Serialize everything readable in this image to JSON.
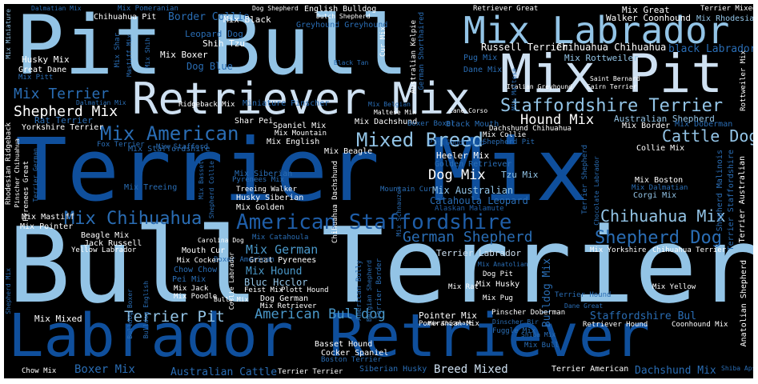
{
  "palette": {
    "background": "#000000",
    "pale": "#cfe1f2",
    "light": "#93c4e6",
    "mid": "#4a98c9",
    "medium": "#2a6db4",
    "deep": "#0f4f9c",
    "white": "#ffffff"
  },
  "words": [
    {
      "t": "Terrier Mix",
      "c": "#0f4f9c"
    },
    {
      "t": "Bull Terrier",
      "c": "#93c4e6"
    },
    {
      "t": "Pit Bull",
      "c": "#93c4e6"
    },
    {
      "t": "Labrador Retriever",
      "c": "#0f4f9c"
    },
    {
      "t": "Mix Labrador",
      "c": "#93c4e6"
    },
    {
      "t": "Mix Pit",
      "c": "#cfe1f2"
    },
    {
      "t": "Retriever Mix",
      "c": "#cfe1f2"
    },
    {
      "t": "Staffordshire Terrier",
      "c": "#93c4e6"
    },
    {
      "t": "American Staffordshire",
      "c": "#1f5ea8"
    },
    {
      "t": "Mixed Breed",
      "c": "#93c4e6"
    },
    {
      "t": "Mix American",
      "c": "#2a6db4"
    },
    {
      "t": "Shepherd Dog",
      "c": "#2a6db4"
    },
    {
      "t": "German Shepherd",
      "c": "#2a6db4"
    },
    {
      "t": "Chihuahua Mix",
      "c": "#93c4e6"
    },
    {
      "t": "Mix Chihuahua",
      "c": "#2a6db4"
    },
    {
      "t": "Cattle Dog",
      "c": "#93c4e6"
    },
    {
      "t": "Shepherd Mix",
      "c": "#ffffff"
    },
    {
      "t": "Mix Terrier",
      "c": "#2a6db4"
    },
    {
      "t": "Hound Mix",
      "c": "#ffffff"
    },
    {
      "t": "Dog Mix",
      "c": "#ffffff"
    },
    {
      "t": "American Bulldog",
      "c": "#4a98c9"
    },
    {
      "t": "Terrier Pit",
      "c": "#93c4e6"
    },
    {
      "t": "Breed Mixed",
      "c": "#cfe1f2"
    },
    {
      "t": "Australian Cattle",
      "c": "#2a6db4"
    },
    {
      "t": "Boxer Mix",
      "c": "#2a6db4"
    },
    {
      "t": "Dachshund Mix",
      "c": "#2a6db4"
    },
    {
      "t": "Mix German",
      "c": "#4a98c9"
    },
    {
      "t": "Bulldog Mix",
      "c": "#2a6db4"
    },
    {
      "t": "Staffordshire Bul",
      "c": "#2a6db4"
    },
    {
      "t": "Terrier Labrador",
      "c": "#cfe1f2"
    },
    {
      "t": "Mix Hound",
      "c": "#4a98c9"
    },
    {
      "t": "Border Collie",
      "c": "#2a6db4"
    },
    {
      "t": "Russell Terrier",
      "c": "#ffffff"
    },
    {
      "t": "Chihuahua Chihuahua",
      "c": "#ffffff"
    },
    {
      "t": "Mix Rottweiler",
      "c": "#93c4e6"
    },
    {
      "t": "black Labrador",
      "c": "#2a6db4"
    },
    {
      "t": "Mix Great",
      "c": "#ffffff"
    },
    {
      "t": "Walker Coonhound",
      "c": "#ffffff"
    },
    {
      "t": "Terrier Mixed",
      "c": "#ffffff"
    },
    {
      "t": "Mix Rhodesian",
      "c": "#93c4e6"
    },
    {
      "t": "Australian Shepherd",
      "c": "#93c4e6"
    },
    {
      "t": "Mix Border",
      "c": "#ffffff"
    },
    {
      "t": "Mix Doberman",
      "c": "#2a6db4"
    },
    {
      "t": "Collie Mix",
      "c": "#ffffff"
    },
    {
      "t": "Heeler Mix",
      "c": "#ffffff"
    },
    {
      "t": "Golden Retriever",
      "c": "#2a6db4"
    },
    {
      "t": "Tzu Mix",
      "c": "#93c4e6"
    },
    {
      "t": "Mix Australian",
      "c": "#93c4e6"
    },
    {
      "t": "Mix Boston",
      "c": "#ffffff"
    },
    {
      "t": "Mix Dalmatian",
      "c": "#2a6db4"
    },
    {
      "t": "Corgi Mix",
      "c": "#93c4e6"
    },
    {
      "t": "Catahoula Leopard",
      "c": "#2a6db4"
    },
    {
      "t": "Alaskan Malamute",
      "c": "#1f5ea8"
    },
    {
      "t": "Mix Dachshund",
      "c": "#ffffff"
    },
    {
      "t": "Boxer Boxer",
      "c": "#2a6db4"
    },
    {
      "t": "Black Mouth",
      "c": "#2a6db4"
    },
    {
      "t": "Dachshund Chihuahua",
      "c": "#ffffff"
    },
    {
      "t": "Mix Collie",
      "c": "#ffffff"
    },
    {
      "t": "Shepherd Pit",
      "c": "#2a6db4"
    },
    {
      "t": "Pit Goodhound",
      "c": "#1f5ea8"
    },
    {
      "t": "Mix Beagle",
      "c": "#ffffff"
    },
    {
      "t": "Spaniel Mix",
      "c": "#ffffff"
    },
    {
      "t": "Mix Mountain",
      "c": "#ffffff"
    },
    {
      "t": "Mix English",
      "c": "#ffffff"
    },
    {
      "t": "Shar Pei",
      "c": "#ffffff"
    },
    {
      "t": "Mix Stafford",
      "c": "#2a6db4"
    },
    {
      "t": "Mix Staffordshire",
      "c": "#2a6db4"
    },
    {
      "t": "Fox Terrier",
      "c": "#2a6db4"
    },
    {
      "t": "Yorkshire Terrier",
      "c": "#ffffff"
    },
    {
      "t": "Rat Terrier",
      "c": "#2a6db4"
    },
    {
      "t": "Mix Siberian",
      "c": "#2a6db4"
    },
    {
      "t": "Pyrenees Mix",
      "c": "#2a6db4"
    },
    {
      "t": "Mix Treeing",
      "c": "#2a6db4"
    },
    {
      "t": "Treeing Walker",
      "c": "#ffffff"
    },
    {
      "t": "Husky Siberian",
      "c": "#ffffff"
    },
    {
      "t": "Mix Golden",
      "c": "#ffffff"
    },
    {
      "t": "Mountain Cur",
      "c": "#2a6db4"
    },
    {
      "t": "Mix Mastiff",
      "c": "#ffffff"
    },
    {
      "t": "Mix Pointer",
      "c": "#ffffff"
    },
    {
      "t": "Beagle Mix",
      "c": "#ffffff"
    },
    {
      "t": "Jack Russell",
      "c": "#ffffff"
    },
    {
      "t": "Yellow Labrador",
      "c": "#ffffff"
    },
    {
      "t": "Carolina Dog",
      "c": "#ffffff"
    },
    {
      "t": "Mix Catahoula",
      "c": "#2a6db4"
    },
    {
      "t": "Mouth Cur",
      "c": "#ffffff"
    },
    {
      "t": "Great Pyrenees",
      "c": "#ffffff"
    },
    {
      "t": "Boxer American",
      "c": "#2a6db4"
    },
    {
      "t": "Mix Cocker",
      "c": "#ffffff"
    },
    {
      "t": "Chow Chow",
      "c": "#2a6db4"
    },
    {
      "t": "Pei Mix",
      "c": "#2a6db4"
    },
    {
      "t": "Mix Jack",
      "c": "#ffffff"
    },
    {
      "t": "Mix Poodle",
      "c": "#ffffff"
    },
    {
      "t": "Bluc Hcclor",
      "c": "#93c4e6"
    },
    {
      "t": "Feist Mix",
      "c": "#ffffff"
    },
    {
      "t": "Plott Hound",
      "c": "#ffffff"
    },
    {
      "t": "Dog German",
      "c": "#ffffff"
    },
    {
      "t": "Mix Retriever",
      "c": "#ffffff"
    },
    {
      "t": "Bulldog English",
      "c": "#2a6db4"
    },
    {
      "t": "Bulldog Boxer",
      "c": "#2a6db4"
    },
    {
      "t": "Bully Mix",
      "c": "#ffffff"
    },
    {
      "t": "Mix Mixed",
      "c": "#ffffff"
    },
    {
      "t": "Basset Hound",
      "c": "#ffffff"
    },
    {
      "t": "Cocker Spaniel",
      "c": "#ffffff"
    },
    {
      "t": "Boston Terrier",
      "c": "#2a6db4"
    },
    {
      "t": "Chow Mix",
      "c": "#ffffff"
    },
    {
      "t": "Terrier Terrier",
      "c": "#ffffff"
    },
    {
      "t": "Siberian Husky",
      "c": "#2a6db4"
    },
    {
      "t": "Terrier American",
      "c": "#ffffff"
    },
    {
      "t": "Pointer Mix",
      "c": "#ffffff"
    },
    {
      "t": "Pomeranian Mix",
      "c": "#ffffff"
    },
    {
      "t": "Pinscher Doberman",
      "c": "#ffffff"
    },
    {
      "t": "Retriever Hound",
      "c": "#ffffff"
    },
    {
      "t": "Coonhound Mix",
      "c": "#ffffff"
    },
    {
      "t": "Mix Rat",
      "c": "#ffffff"
    },
    {
      "t": "Mix Husky",
      "c": "#ffffff"
    },
    {
      "t": "Mix Pug",
      "c": "#ffffff"
    },
    {
      "t": "Terrier Hound",
      "c": "#2a6db4"
    },
    {
      "t": "Mix Yellow",
      "c": "#ffffff"
    },
    {
      "t": "Dane Great",
      "c": "#2a6db4"
    },
    {
      "t": "Dog Pit",
      "c": "#ffffff"
    },
    {
      "t": "Mix Anatolian",
      "c": "#2a6db4"
    },
    {
      "t": "Mix Yorkshire",
      "c": "#ffffff"
    },
    {
      "t": "Chihuahua Terrier",
      "c": "#ffffff"
    },
    {
      "t": "Mix Bull",
      "c": "#2a6db4"
    },
    {
      "t": "Shiba Mix",
      "c": "#2a6db4"
    },
    {
      "t": "Fuggle Mix",
      "c": "#2a6db4"
    },
    {
      "t": "Dinscher Bir",
      "c": "#2a6db4"
    },
    {
      "t": "Shiba Apso",
      "c": "#2a6db4"
    },
    {
      "t": "Mix Chocolate",
      "c": "#ffffff"
    },
    {
      "t": "Chihuahua Pit",
      "c": "#ffffff"
    },
    {
      "t": "Mix Pomeranian",
      "c": "#2a6db4"
    },
    {
      "t": "Dalmatian Mix",
      "c": "#2a6db4"
    },
    {
      "t": "Dog Shepherd",
      "c": "#ffffff"
    },
    {
      "t": "English Bulldog",
      "c": "#ffffff"
    },
    {
      "t": "Dutch Shepherd",
      "c": "#ffffff"
    },
    {
      "t": "Greyhound Greyhound",
      "c": "#2a6db4"
    },
    {
      "t": "Cur Mix",
      "c": "#ffffff"
    },
    {
      "t": "Australian Kelpie",
      "c": "#ffffff"
    },
    {
      "t": "German Shorthaired",
      "c": "#2a6db4"
    },
    {
      "t": "Retriever Great",
      "c": "#ffffff"
    },
    {
      "t": "Mix Black",
      "c": "#ffffff"
    },
    {
      "t": "Leopard Dog",
      "c": "#2a6db4"
    },
    {
      "t": "Shih Tzu",
      "c": "#ffffff"
    },
    {
      "t": "Mix Boxer",
      "c": "#ffffff"
    },
    {
      "t": "Dog Blue",
      "c": "#2a6db4"
    },
    {
      "t": "Husky Mix",
      "c": "#ffffff"
    },
    {
      "t": "Great Dane",
      "c": "#ffffff"
    },
    {
      "t": "Mix Pitt",
      "c": "#2a6db4"
    },
    {
      "t": "Mix Shar",
      "c": "#2a6db4"
    },
    {
      "t": "Mastiff Mix",
      "c": "#2a6db4"
    },
    {
      "t": "Mix Shih",
      "c": "#2a6db4"
    },
    {
      "t": "Mix Miniature",
      "c": "#93c4e6"
    },
    {
      "t": "Dalmatian Mix",
      "c": "#2a6db4"
    },
    {
      "t": "Ridgeback Mix",
      "c": "#ffffff"
    },
    {
      "t": "Miniature Pinscher",
      "c": "#2a6db4"
    },
    {
      "t": "Black Tan",
      "c": "#2a6db4"
    },
    {
      "t": "Mix Belgian",
      "c": "#2a6db4"
    },
    {
      "t": "Maltese Mix",
      "c": "#ffffff"
    },
    {
      "t": "Cane Corso",
      "c": "#ffffff"
    },
    {
      "t": "Saint Bernard",
      "c": "#ffffff"
    },
    {
      "t": "Italian Greyhound",
      "c": "#ffffff"
    },
    {
      "t": "Pug Mix",
      "c": "#2a6db4"
    },
    {
      "t": "Dane Mix",
      "c": "#2a6db4"
    },
    {
      "t": "Mix Maltese",
      "c": "#2a6db4"
    },
    {
      "t": "Rottweiler Mix",
      "c": "#ffffff"
    },
    {
      "t": "Cairn Terrier",
      "c": "#ffffff"
    },
    {
      "t": "Rhodesian Ridgeback",
      "c": "#ffffff"
    },
    {
      "t": "Pinscher Chihuahua",
      "c": "#ffffff"
    },
    {
      "t": "Pyrenees Great",
      "c": "#ffffff"
    },
    {
      "t": "Terrier German",
      "c": "#2a6db4"
    },
    {
      "t": "Mix Basset",
      "c": "#2a6db4"
    },
    {
      "t": "Shepherd Collie",
      "c": "#2a6db4"
    },
    {
      "t": "Chihuahua Dachshund",
      "c": "#ffffff"
    },
    {
      "t": "Terrier Shepherd",
      "c": "#2a6db4"
    },
    {
      "t": "Chocolate Labrador",
      "c": "#2a6db4"
    },
    {
      "t": "Shepherd Malinois",
      "c": "#2a6db4"
    },
    {
      "t": "Terrier Staffordshire",
      "c": "#2a6db4"
    },
    {
      "t": "Terrier Australian",
      "c": "#ffffff"
    },
    {
      "t": "Anatolian Shepherd",
      "c": "#ffffff"
    },
    {
      "t": "Collie Labrador",
      "c": "#ffffff"
    },
    {
      "t": "American Bully",
      "c": "#2a6db4"
    },
    {
      "t": "Belgian Shepherd",
      "c": "#2a6db4"
    },
    {
      "t": "Terrier Border",
      "c": "#2a6db4"
    },
    {
      "t": "Mix Schnauzer",
      "c": "#2a6db4"
    },
    {
      "t": "Shepherd Mix",
      "c": "#2a6db4"
    }
  ]
}
